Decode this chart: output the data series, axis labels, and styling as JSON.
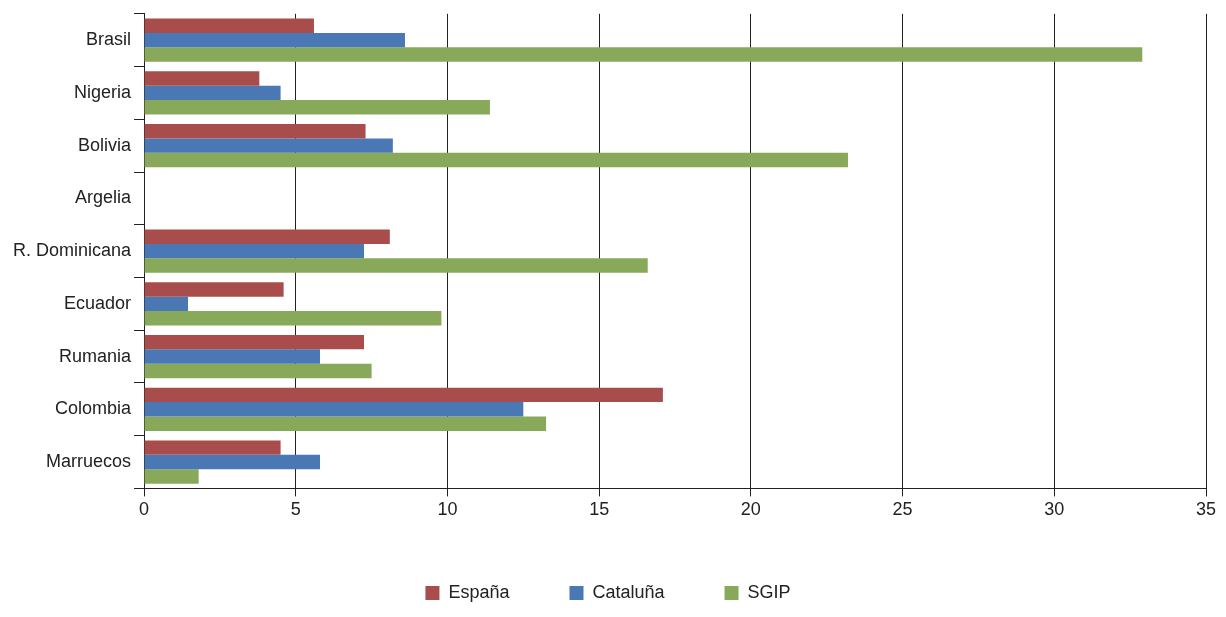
{
  "chart_data": {
    "type": "bar",
    "orientation": "horizontal",
    "categories": [
      "Brasil",
      "Nigeria",
      "Bolivia",
      "Argelia",
      "R. Dominicana",
      "Ecuador",
      "Rumania",
      "Colombia",
      "Marruecos"
    ],
    "series": [
      {
        "name": "España",
        "color": "#a84c4c",
        "values": [
          5.6,
          3.8,
          7.3,
          null,
          8.1,
          4.6,
          7.25,
          17.1,
          4.5
        ]
      },
      {
        "name": "Cataluña",
        "color": "#4a78b4",
        "values": [
          8.6,
          4.5,
          8.2,
          null,
          7.25,
          1.45,
          5.8,
          12.5,
          5.8
        ]
      },
      {
        "name": "SGIP",
        "color": "#88a85a",
        "values": [
          32.9,
          11.4,
          23.2,
          null,
          16.6,
          9.8,
          7.5,
          13.25,
          1.8
        ]
      }
    ],
    "xlim": [
      0,
      35
    ],
    "xticks": [
      0,
      5,
      10,
      15,
      20,
      25,
      30,
      35
    ],
    "grid": "x",
    "legend": "bottom"
  }
}
